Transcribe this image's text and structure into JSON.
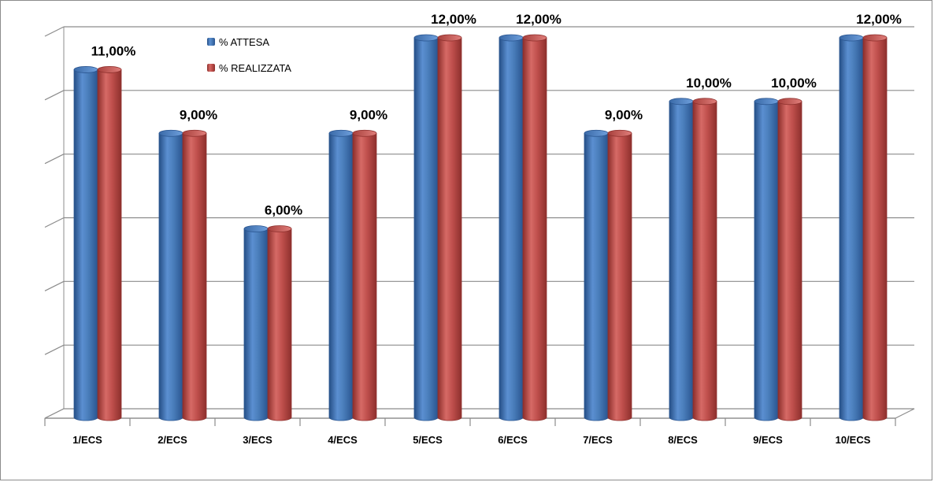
{
  "chart_data": {
    "type": "bar",
    "style": "3d-cylinder",
    "categories": [
      "1/ECS",
      "2/ECS",
      "3/ECS",
      "4/ECS",
      "5/ECS",
      "6/ECS",
      "7/ECS",
      "8/ECS",
      "9/ECS",
      "10/ECS"
    ],
    "series": [
      {
        "name": "% ATTESA",
        "color": "#4a7ebb",
        "values": [
          11,
          9,
          6,
          9,
          12,
          12,
          9,
          10,
          10,
          12
        ]
      },
      {
        "name": "% REALIZZATA",
        "color": "#c0504d",
        "values": [
          11,
          9,
          6,
          9,
          12,
          12,
          9,
          10,
          10,
          12
        ]
      }
    ],
    "data_labels": [
      "11,00%",
      "9,00%",
      "6,00%",
      "9,00%",
      "12,00%",
      "12,00%",
      "9,00%",
      "10,00%",
      "10,00%",
      "12,00%"
    ],
    "ylim": [
      0,
      12
    ],
    "grid": true,
    "legend_position": "top-left inside plot"
  }
}
